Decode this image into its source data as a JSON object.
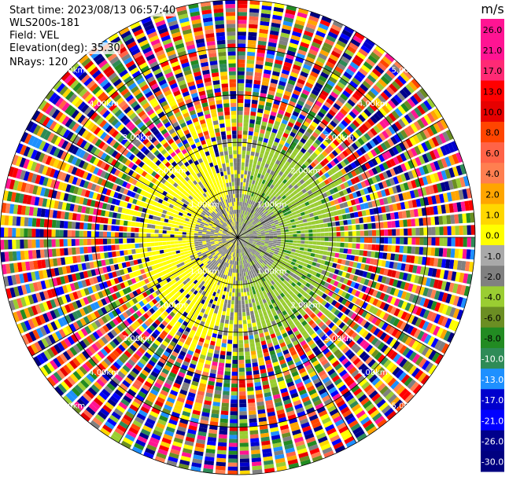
{
  "header": {
    "start_time": "Start time: 2023/08/13 06:57:40",
    "instrument": "WLS200s-181",
    "field": "Field: VEL",
    "elevation": "Elevation(deg): 35.30",
    "nrays": "NRays: 120"
  },
  "chart_data": {
    "type": "ppi-velocity",
    "field": "VEL",
    "units": "m/s",
    "nrays": 120,
    "range_rings_km": [
      1.0,
      2.0,
      3.0,
      4.0,
      5.0
    ],
    "ring_labels": [
      "1.00km",
      "2.00km",
      "3.00km",
      "4.00km",
      "5.00km"
    ],
    "max_range_km": 5.0,
    "colorbar": {
      "title": "m/s",
      "ticks": [
        "26.0",
        "21.0",
        "17.0",
        "13.0",
        "10.0",
        "8.0",
        "6.0",
        "4.0",
        "2.0",
        "1.0",
        "0.0",
        "-1.0",
        "-2.0",
        "-4.0",
        "-6.0",
        "-8.0",
        "-10.0",
        "-13.0",
        "-17.0",
        "-21.0",
        "-26.0",
        "-30.0"
      ],
      "colors": [
        "#ff1493",
        "#ff1493",
        "#ff2a75",
        "#ff0000",
        "#e60000",
        "#ff4500",
        "#ff6347",
        "#ff7f50",
        "#ffa500",
        "#ffd700",
        "#ffff00",
        "#a9a9a9",
        "#808080",
        "#9acd32",
        "#6b8e23",
        "#228b22",
        "#2e8b57",
        "#1e90ff",
        "#0000cd",
        "#0000ff",
        "#00008b",
        "#000080"
      ]
    },
    "colors": {
      "near_zero": "#808080",
      "slightly_positive": "#ffff00",
      "slightly_negative": "#9acd32",
      "grid": "#000000"
    }
  }
}
